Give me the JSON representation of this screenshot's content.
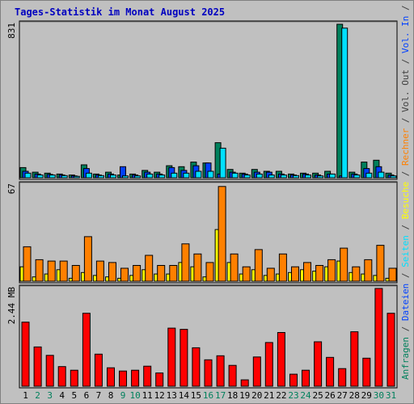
{
  "chart_data": {
    "type": "bar",
    "title": "Tages-Statistik im Monat August 2025",
    "categories": [
      "1",
      "2",
      "3",
      "4",
      "5",
      "6",
      "7",
      "8",
      "9",
      "10",
      "11",
      "12",
      "13",
      "14",
      "15",
      "16",
      "17",
      "18",
      "19",
      "20",
      "21",
      "22",
      "23",
      "24",
      "25",
      "26",
      "27",
      "28",
      "29",
      "30",
      "31"
    ],
    "weekend_days": [
      "2",
      "3",
      "9",
      "10",
      "16",
      "17",
      "23",
      "24",
      "30",
      "31"
    ],
    "panels": [
      {
        "scale_label": "831",
        "ymax": 831,
        "series": [
          {
            "name": "Anfragen",
            "color": "#00805c",
            "values": [
              55,
              30,
              25,
              20,
              15,
              70,
              20,
              30,
              15,
              20,
              40,
              30,
              65,
              60,
              85,
              80,
              190,
              45,
              25,
              45,
              35,
              35,
              20,
              25,
              25,
              35,
              831,
              30,
              85,
              95,
              25
            ]
          },
          {
            "name": "Dateien",
            "color": "#0040ff",
            "values": [
              35,
              20,
              18,
              15,
              10,
              50,
              15,
              20,
              60,
              15,
              30,
              20,
              55,
              40,
              65,
              80,
              20,
              30,
              20,
              30,
              30,
              20,
              15,
              20,
              15,
              20,
              10,
              20,
              50,
              60,
              15
            ]
          },
          {
            "name": "Seiten",
            "color": "#00e0ff",
            "values": [
              25,
              15,
              15,
              12,
              8,
              25,
              12,
              15,
              10,
              10,
              20,
              15,
              25,
              25,
              35,
              35,
              160,
              25,
              15,
              20,
              15,
              15,
              12,
              15,
              10,
              20,
              810,
              15,
              25,
              30,
              10
            ]
          }
        ]
      },
      {
        "scale_label": "67",
        "ymax": 67,
        "series": [
          {
            "name": "Besuche",
            "color": "#ffff00",
            "values": [
              10,
              3,
              5,
              8,
              2,
              6,
              4,
              3,
              2,
              4,
              8,
              5,
              5,
              13,
              10,
              3,
              36,
              13,
              5,
              8,
              4,
              5,
              6,
              8,
              7,
              10,
              14,
              6,
              5,
              4,
              2
            ]
          },
          {
            "name": "Rechner",
            "color": "#ff8000",
            "values": [
              24,
              15,
              14,
              14,
              11,
              31,
              14,
              13,
              9,
              11,
              18,
              11,
              11,
              26,
              19,
              13,
              66,
              19,
              10,
              22,
              9,
              19,
              10,
              13,
              11,
              15,
              23,
              10,
              15,
              25,
              9
            ]
          }
        ]
      },
      {
        "scale_label": "2.44 MB",
        "ymax": 2.44,
        "series": [
          {
            "name": "Volumen",
            "color": "#ff0000",
            "values": [
              1.6,
              0.98,
              0.77,
              0.49,
              0.4,
              1.82,
              0.8,
              0.46,
              0.38,
              0.4,
              0.5,
              0.33,
              1.45,
              1.42,
              0.96,
              0.66,
              0.76,
              0.52,
              0.16,
              0.73,
              1.09,
              1.34,
              0.3,
              0.4,
              1.11,
              0.72,
              0.44,
              1.36,
              0.7,
              2.44,
              1.82
            ]
          }
        ]
      }
    ],
    "right_labels": [
      {
        "text": "Anfragen",
        "color": "#00805c"
      },
      {
        "text": " / ",
        "color": "#404040"
      },
      {
        "text": "Dateien",
        "color": "#0040ff"
      },
      {
        "text": " / ",
        "color": "#404040"
      },
      {
        "text": "Seiten",
        "color": "#00e0ff"
      },
      {
        "text": " / ",
        "color": "#404040"
      },
      {
        "text": "Besuche",
        "color": "#ffff00"
      },
      {
        "text": " / ",
        "color": "#404040"
      },
      {
        "text": "Rechner",
        "color": "#ff8000"
      },
      {
        "text": " / ",
        "color": "#404040"
      },
      {
        "text": "Vol. Out",
        "color": "#404040"
      },
      {
        "text": " / ",
        "color": "#404040"
      },
      {
        "text": "Vol. In",
        "color": "#0040ff"
      },
      {
        "text": " / ",
        "color": "#404040"
      },
      {
        "text": "Volumen",
        "color": "#ff0000"
      }
    ],
    "weekday_color": "#000000",
    "weekend_color": "#00805c"
  }
}
